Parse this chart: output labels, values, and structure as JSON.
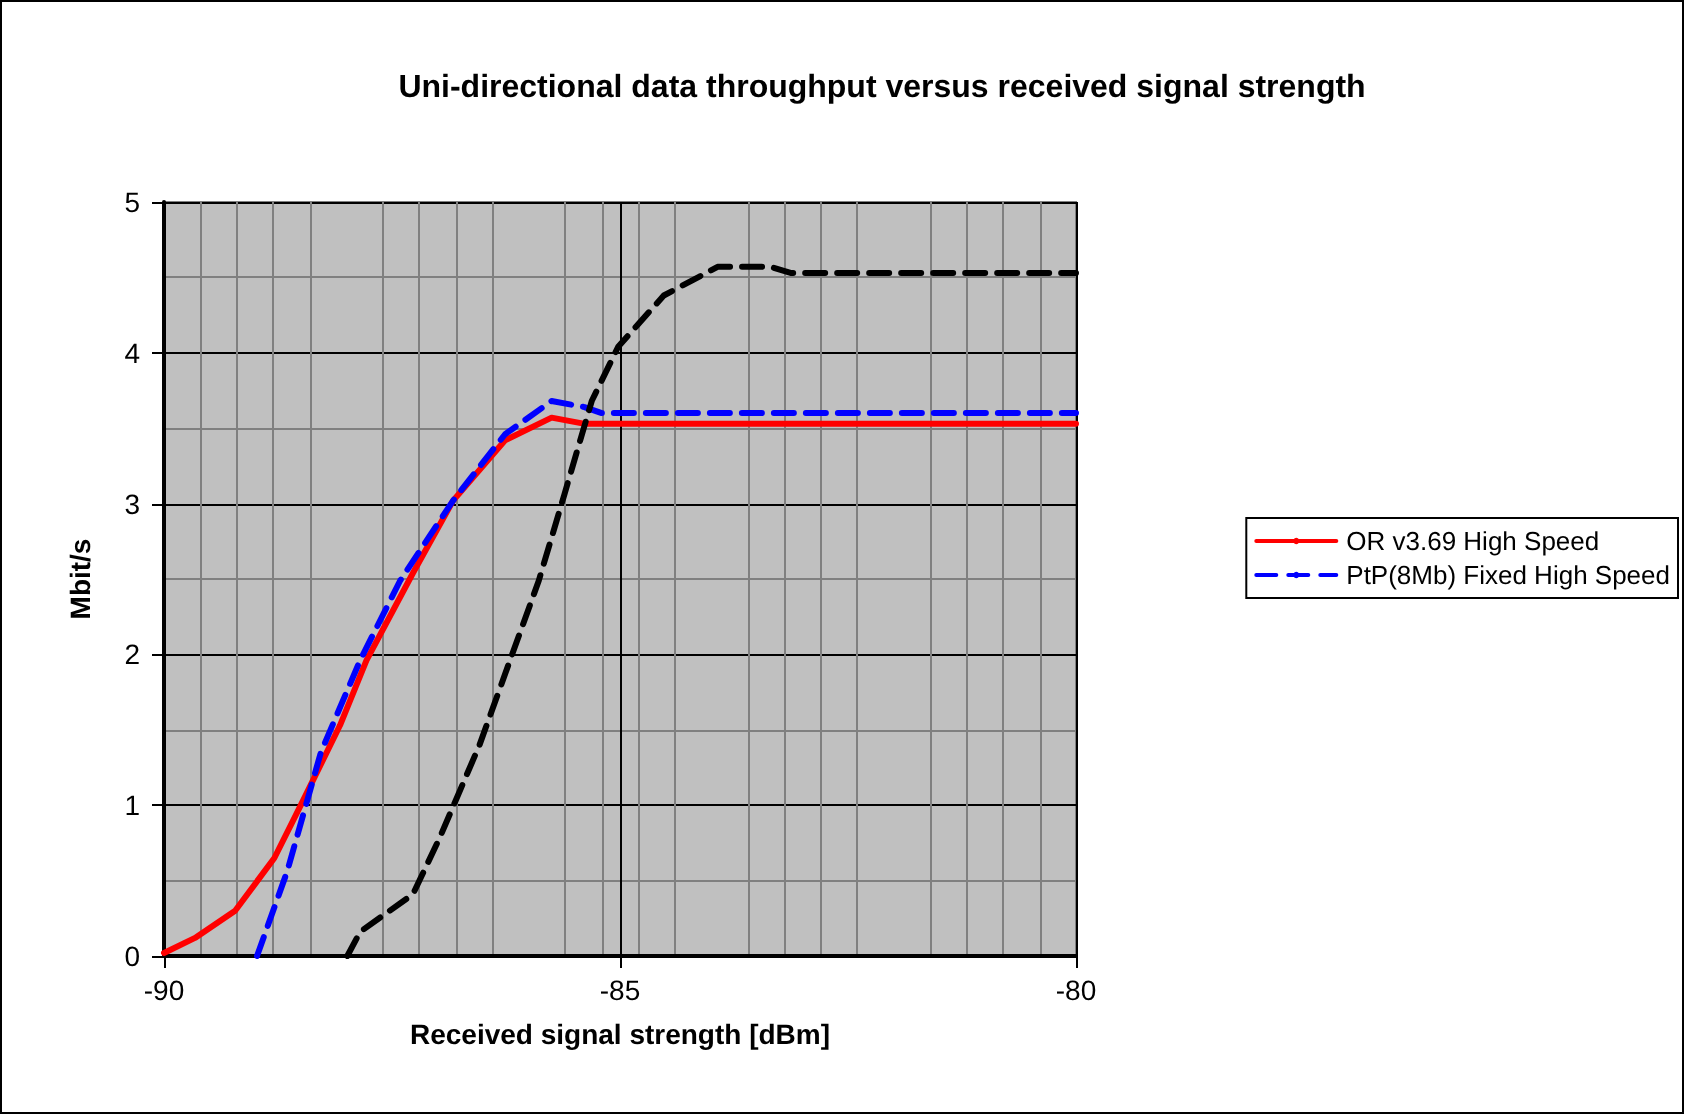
{
  "chart_data": {
    "type": "line",
    "title": "Uni-directional data throughput versus received signal strength",
    "xlabel": "Received signal strength [dBm]",
    "ylabel": "Mbit/s",
    "xlim": [
      -90,
      -80
    ],
    "xticks": [
      -90,
      -85,
      -80
    ],
    "ylim": [
      0,
      5
    ],
    "yticks": [
      0,
      1,
      2,
      3,
      4,
      5
    ],
    "grid": true,
    "legend": "right",
    "marker": "none",
    "series": [
      {
        "name": "OR v3.69 High Speed",
        "color": "#ff0000",
        "line_style": "solid",
        "x": [
          -90,
          -89.66,
          -89.22,
          -88.79,
          -88.5,
          -88.07,
          -87.78,
          -87.27,
          -86.83,
          -86.26,
          -85.75,
          -85.4,
          -80
        ],
        "values": [
          0.02,
          0.12,
          0.3,
          0.65,
          1.0,
          1.53,
          1.96,
          2.54,
          3.02,
          3.42,
          3.57,
          3.53,
          3.53
        ]
      },
      {
        "name": "PtP(8Mb) Fixed High Speed",
        "color": "#0000ff",
        "line_style": "dashed",
        "x": [
          -88.98,
          -88.65,
          -88.28,
          -87.85,
          -87.41,
          -86.83,
          -86.26,
          -85.75,
          -85.39,
          -85.2,
          -80
        ],
        "values": [
          0,
          0.56,
          1.35,
          1.96,
          2.49,
          3.02,
          3.46,
          3.68,
          3.64,
          3.6,
          3.6
        ]
      },
      {
        "color": "#000000",
        "line_style": "dashed",
        "x": [
          -87.99,
          -87.85,
          -87.27,
          -86.98,
          -86.54,
          -86.26,
          -85.89,
          -85.61,
          -85.31,
          -85.02,
          -84.52,
          -83.93,
          -83.35,
          -83.13,
          -80
        ],
        "values": [
          0,
          0.16,
          0.41,
          0.78,
          1.4,
          1.87,
          2.49,
          3.06,
          3.68,
          4.04,
          4.38,
          4.57,
          4.57,
          4.53,
          4.53
        ]
      }
    ]
  }
}
